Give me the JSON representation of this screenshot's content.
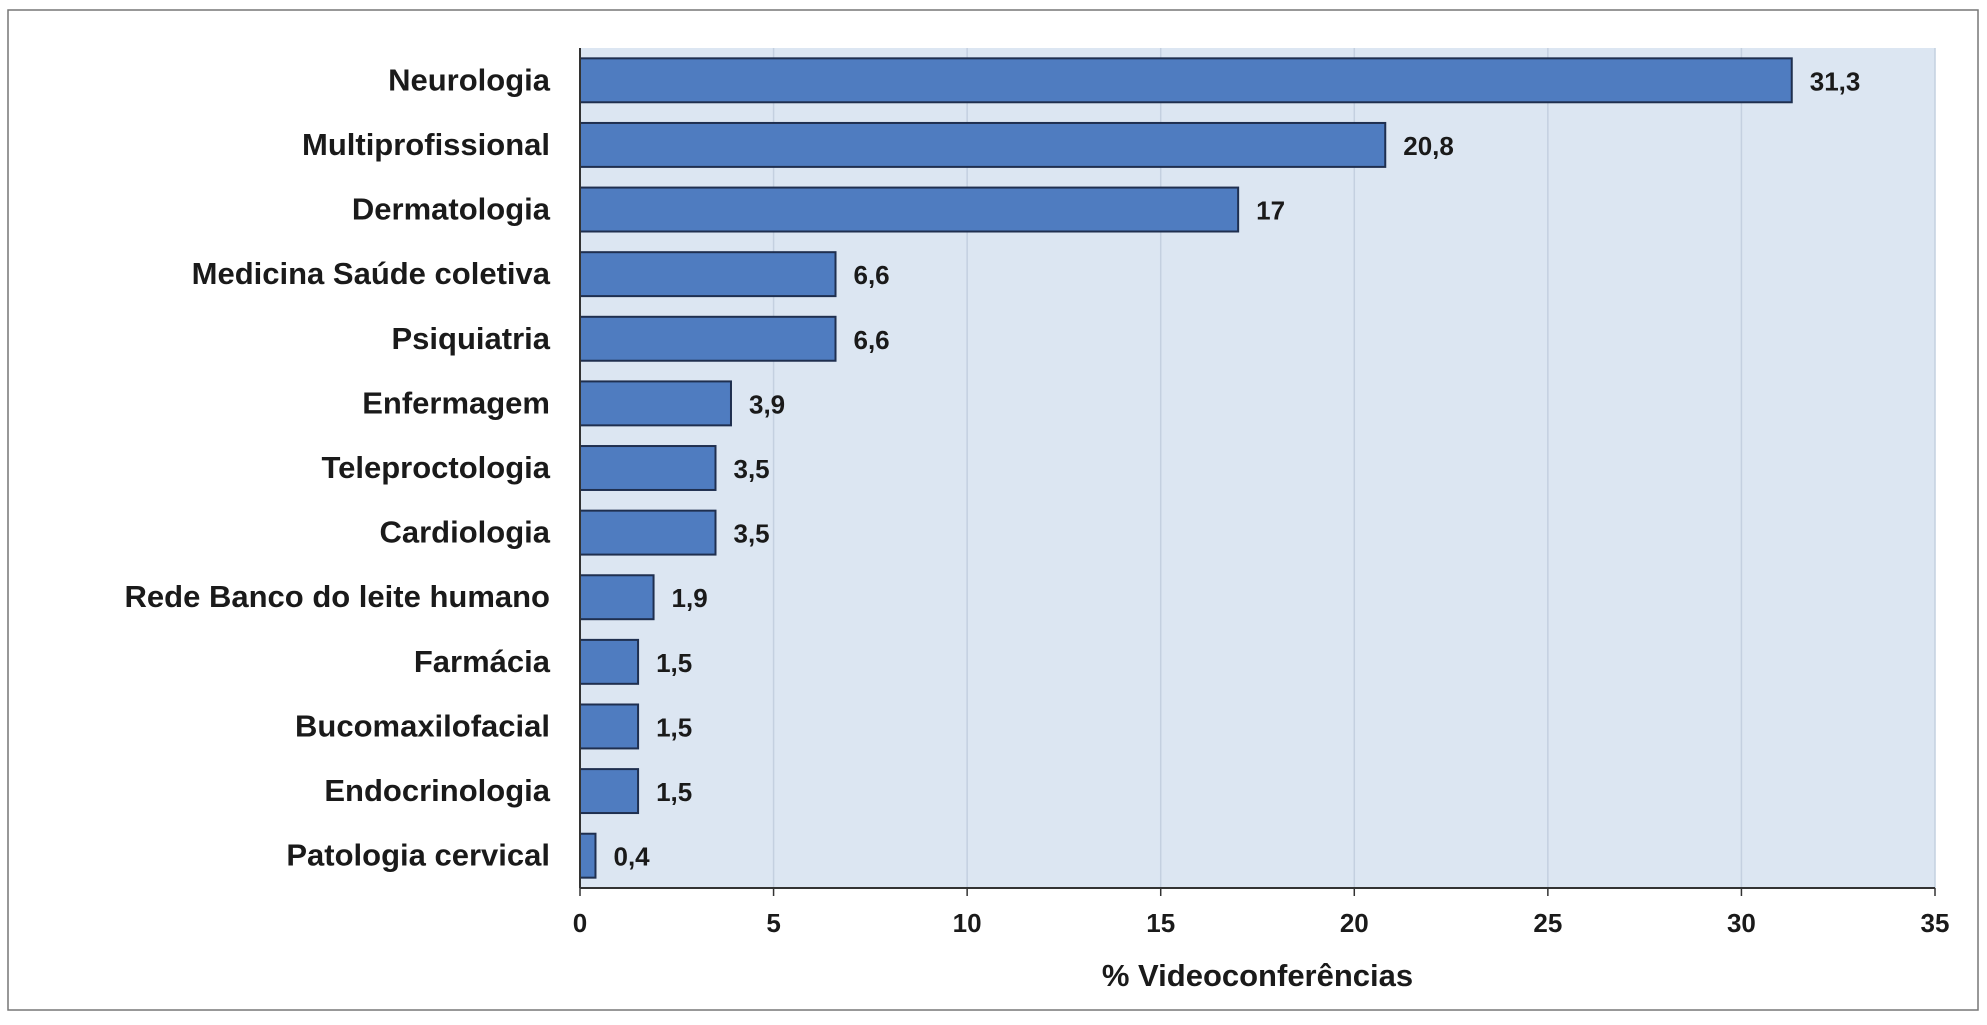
{
  "chart_data": {
    "type": "bar",
    "orientation": "horizontal",
    "categories": [
      "Neurologia",
      "Multiprofissional",
      "Dermatologia",
      "Medicina Saúde coletiva",
      "Psiquiatria",
      "Enfermagem",
      "Teleproctologia",
      "Cardiologia",
      "Rede Banco do leite humano",
      "Farmácia",
      "Bucomaxilofacial",
      "Endocrinologia",
      "Patologia cervical"
    ],
    "values": [
      31.3,
      20.8,
      17,
      6.6,
      6.6,
      3.9,
      3.5,
      3.5,
      1.9,
      1.5,
      1.5,
      1.5,
      0.4
    ],
    "value_labels": [
      "31,3",
      "20,8",
      "17",
      "6,6",
      "6,6",
      "3,9",
      "3,5",
      "3,5",
      "1,9",
      "1,5",
      "1,5",
      "1,5",
      "0,4"
    ],
    "xlabel": "% Videoconferências",
    "ylabel": "",
    "title": "",
    "xlim": [
      0,
      35
    ],
    "xticks": [
      0,
      5,
      10,
      15,
      20,
      25,
      30,
      35
    ],
    "grid": true,
    "legend": "none",
    "colors": {
      "bar_fill": "#4f7cc0",
      "bar_stroke": "#1f2f4f",
      "plot_background": "#dce6f2",
      "gridline": "#c4d0e0",
      "frame": "#666666"
    }
  }
}
